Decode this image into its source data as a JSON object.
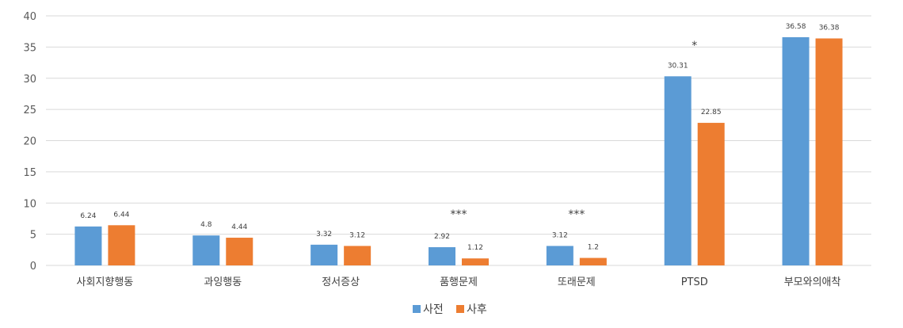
{
  "chart_data": {
    "type": "bar",
    "categories": [
      "사회지향행동",
      "과잉행동",
      "정서증상",
      "품행문제",
      "또래문제",
      "PTSD",
      "부모와의애착"
    ],
    "series": [
      {
        "name": "사전",
        "color": "#5b9bd5",
        "values": [
          6.24,
          4.8,
          3.32,
          2.92,
          3.12,
          30.31,
          36.58
        ]
      },
      {
        "name": "사후",
        "color": "#ed7d31",
        "values": [
          6.44,
          4.44,
          3.12,
          1.12,
          1.2,
          22.85,
          36.38
        ]
      }
    ],
    "data_labels": [
      [
        "6.24",
        "4.8",
        "3.32",
        "2.92",
        "3.12",
        "30.31",
        "36.58"
      ],
      [
        "6.44",
        "4.44",
        "3.12",
        "1.12",
        "1.2",
        "22.85",
        "36.38"
      ]
    ],
    "annotations": [
      {
        "category_index": 3,
        "text": "***"
      },
      {
        "category_index": 4,
        "text": "***"
      },
      {
        "category_index": 5,
        "text": "*"
      }
    ],
    "ylim": [
      0,
      40
    ],
    "yticks": [
      0,
      5,
      10,
      15,
      20,
      25,
      30,
      35,
      40
    ],
    "grid": true,
    "legend_position": "bottom"
  }
}
